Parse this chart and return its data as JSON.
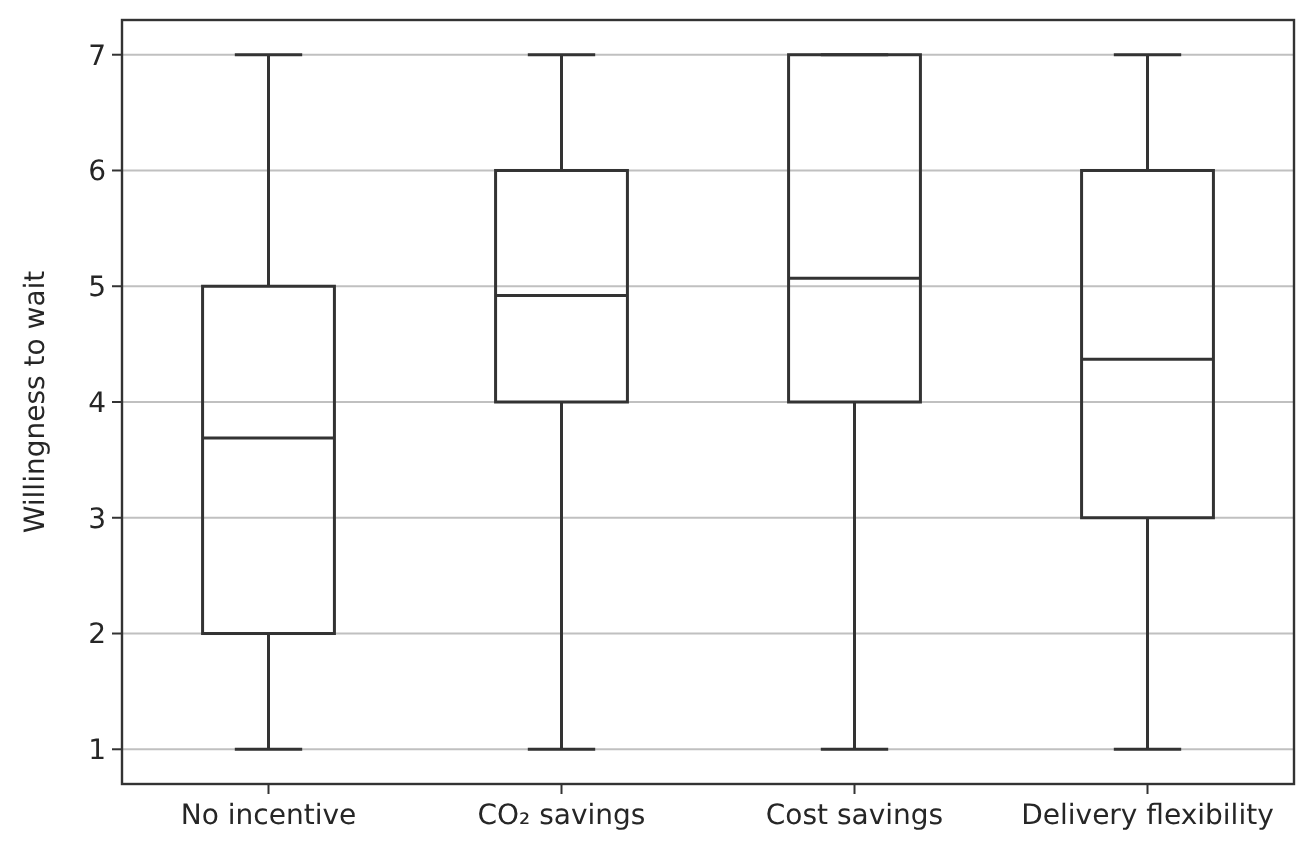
{
  "chart_data": {
    "type": "box",
    "ylabel": "Willingness to wait",
    "categories": [
      "No incentive",
      "CO₂ savings",
      "Cost savings",
      "Delivery flexibility"
    ],
    "boxes": [
      {
        "low": 1,
        "q1": 2,
        "median": 3.69,
        "q3": 5,
        "high": 7
      },
      {
        "low": 1,
        "q1": 4,
        "median": 4.92,
        "q3": 6,
        "high": 7
      },
      {
        "low": 1,
        "q1": 4,
        "median": 5.07,
        "q3": 7,
        "high": 7
      },
      {
        "low": 1,
        "q1": 3,
        "median": 4.37,
        "q3": 6,
        "high": 7
      }
    ],
    "color": "#333333",
    "ylim": [
      0.7,
      7.3
    ],
    "yticks": [
      1,
      2,
      3,
      4,
      5,
      6,
      7
    ],
    "grid": "y"
  }
}
